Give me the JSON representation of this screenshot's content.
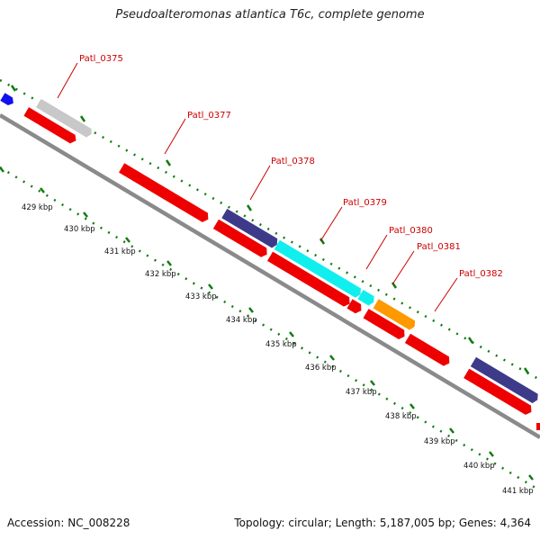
{
  "title": "Pseudoalteromonas atlantica T6c, complete genome",
  "footer": {
    "accession": "Accession: NC_008228",
    "summary": "Topology: circular; Length: 5,187,005 bp; Genes: 4,364"
  },
  "colors": {
    "backbone": "#8a8a8a",
    "tick": "#117a11",
    "cds": "#ee0000",
    "label": "#cc0000",
    "light_gray": "#c8c8c8",
    "purple": "#3e3a8a",
    "cyan": "#11eeee",
    "orange": "#ff9900",
    "blue": "#1111ee"
  },
  "axis_labels": [
    "429 kbp",
    "430 kbp",
    "431 kbp",
    "432 kbp",
    "433 kbp",
    "434 kbp",
    "435 kbp",
    "436 kbp",
    "437 kbp",
    "438 kbp",
    "439 kbp",
    "440 kbp",
    "441 kbp"
  ],
  "gene_labels": [
    "Patl_0375",
    "Patl_0377",
    "Patl_0378",
    "Patl_0379",
    "Patl_0380",
    "Patl_0381",
    "Patl_0382"
  ]
}
